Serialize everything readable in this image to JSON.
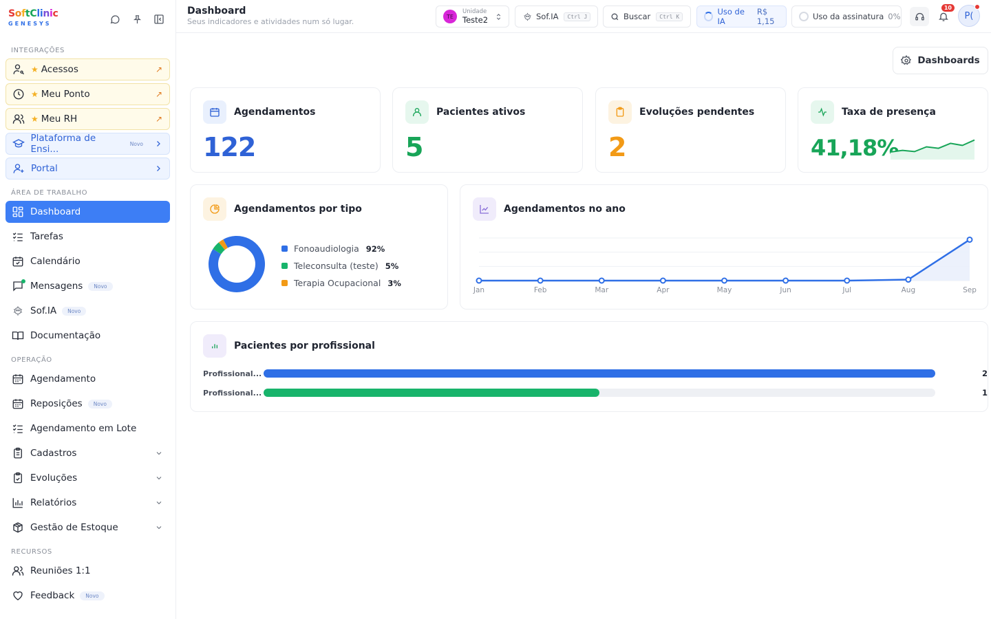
{
  "brand": {
    "name_parts": [
      "S",
      "o",
      "f",
      "t",
      "C",
      "l",
      "i",
      "n",
      "i",
      "c"
    ],
    "name_colors": [
      "#e53935",
      "#f08a24",
      "#f4b024",
      "#18a558",
      "#18a558",
      "#2f6fe6",
      "#2f6fe6",
      "#7b4fd8",
      "#d826d8",
      "#e53935"
    ],
    "subtitle": "GENESYS"
  },
  "sidebar": {
    "sections": {
      "integracoes": "INTEGRAÇÕES",
      "area": "ÁREA DE TRABALHO",
      "operacao": "OPERAÇÃO",
      "recursos": "RECURSOS"
    },
    "integracoes": [
      {
        "label": "Acessos",
        "icon": "user-key-icon"
      },
      {
        "label": "Meu Ponto",
        "icon": "clock-icon"
      },
      {
        "label": "Meu RH",
        "icon": "users-icon"
      }
    ],
    "plataforma": {
      "label": "Plataforma de Ensi...",
      "badge": "Novo"
    },
    "portal": {
      "label": "Portal"
    },
    "area": [
      {
        "label": "Dashboard",
        "icon": "dashboard-icon"
      },
      {
        "label": "Tarefas",
        "icon": "tasks-icon"
      },
      {
        "label": "Calendário",
        "icon": "calendar-check-icon"
      },
      {
        "label": "Mensagens",
        "icon": "message-icon",
        "badge": "Novo"
      },
      {
        "label": "Sof.IA",
        "icon": "robot-icon",
        "badge": "Novo"
      },
      {
        "label": "Documentação",
        "icon": "book-icon"
      }
    ],
    "operacao": [
      {
        "label": "Agendamento",
        "icon": "calendar-grid-icon"
      },
      {
        "label": "Reposições",
        "icon": "calendar-grid-icon",
        "badge": "Novo"
      },
      {
        "label": "Agendamento em Lote",
        "icon": "list-check-icon"
      },
      {
        "label": "Cadastros",
        "icon": "clipboard-list-icon"
      },
      {
        "label": "Evoluções",
        "icon": "clipboard-check-icon"
      },
      {
        "label": "Relatórios",
        "icon": "bar-chart-icon"
      },
      {
        "label": "Gestão de Estoque",
        "icon": "package-icon"
      }
    ],
    "recursos": [
      {
        "label": "Reuniões 1:1",
        "icon": "users-icon"
      },
      {
        "label": "Feedback",
        "icon": "heart-icon",
        "badge": "Novo"
      }
    ]
  },
  "header": {
    "title": "Dashboard",
    "subtitle": "Seus indicadores e atividades num só lugar.",
    "unit_label": "Unidade",
    "unit_value": "Teste2",
    "unit_initials": "TE",
    "sofia": "Sof.IA",
    "sofia_kbd": "Ctrl J",
    "search": "Buscar",
    "search_kbd": "Ctrl K",
    "ia_usage_label": "Uso de IA",
    "ia_usage_value": "R$ 1,15",
    "sub_usage_label": "Uso da assinatura",
    "sub_usage_value": "0%",
    "notif_count": "10",
    "user_initials": "P("
  },
  "dash_button": "Dashboards",
  "kpis": [
    {
      "title": "Agendamentos",
      "value": "122",
      "color": "#2f62d6"
    },
    {
      "title": "Pacientes ativos",
      "value": "5",
      "color": "#18a558"
    },
    {
      "title": "Evoluções pendentes",
      "value": "2",
      "color": "#f29a16"
    },
    {
      "title": "Taxa de presença",
      "value": "41,18%",
      "color": "#18a558",
      "trend": [
        0.3,
        0.38,
        0.32,
        0.55,
        0.48,
        0.72,
        0.62,
        0.88
      ]
    }
  ],
  "tipo": {
    "title": "Agendamentos por tipo",
    "chart_data": {
      "type": "pie",
      "categories": [
        "Fonoaudiologia",
        "Teleconsulta (teste)",
        "Terapia Ocupacional"
      ],
      "values": [
        92,
        5,
        3
      ],
      "labels": [
        "92%",
        "5%",
        "3%"
      ],
      "colors": [
        "#2f6fe6",
        "#18b46b",
        "#f29a16"
      ]
    }
  },
  "ano": {
    "title": "Agendamentos no ano",
    "chart_data": {
      "type": "line",
      "x": [
        "Jan",
        "Feb",
        "Mar",
        "Apr",
        "May",
        "Jun",
        "Jul",
        "Aug",
        "Sep"
      ],
      "series": [
        {
          "values": [
            0,
            0,
            0,
            0,
            0,
            0,
            0,
            3,
            120
          ]
        }
      ],
      "ylim": [
        0,
        125
      ],
      "grid": true,
      "color": "#2f6fe6"
    }
  },
  "profissional": {
    "title": "Pacientes por profissional",
    "chart_data": {
      "type": "bar",
      "categories": [
        "Profissional...",
        "Profissional..."
      ],
      "values": [
        2,
        1
      ],
      "labels": [
        "2",
        "1"
      ],
      "colors": [
        "#2f6fe6",
        "#18b46b"
      ]
    }
  }
}
